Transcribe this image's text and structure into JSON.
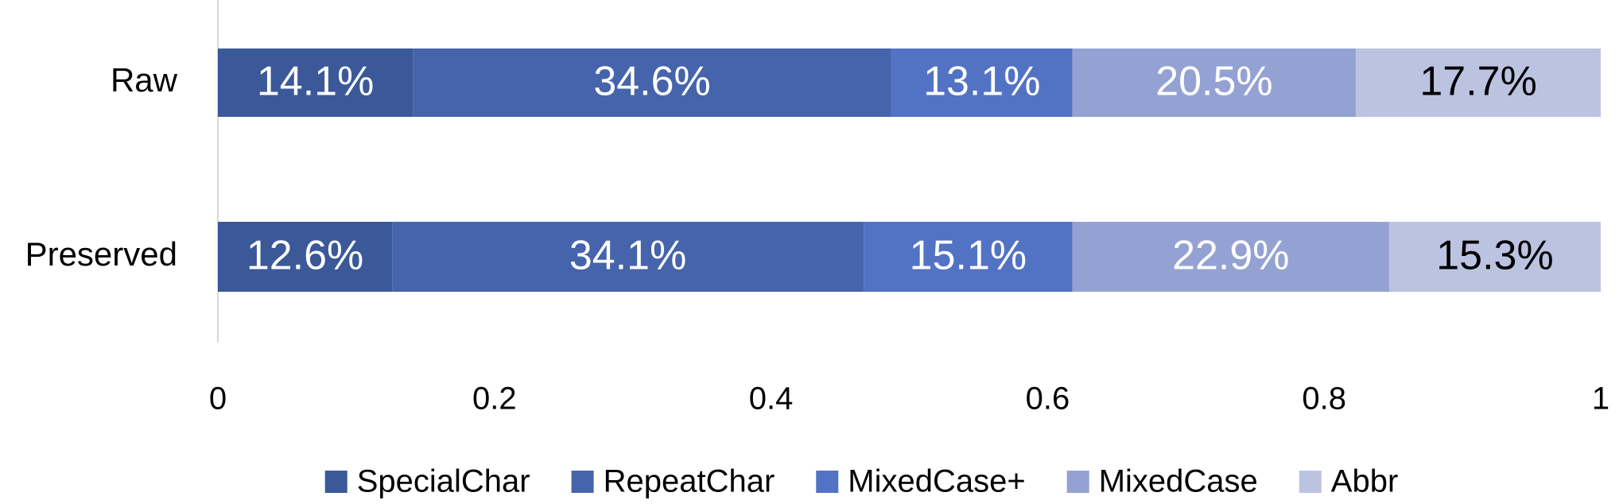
{
  "chart_data": {
    "type": "stacked_bar_horizontal",
    "categories": [
      "Raw",
      "Preserved"
    ],
    "series": [
      {
        "name": "SpecialChar",
        "color": "#3b5998",
        "values": [
          0.141,
          0.126
        ],
        "value_labels": [
          "14.1%",
          "12.6%"
        ]
      },
      {
        "name": "RepeatChar",
        "color": "#4564ab",
        "values": [
          0.346,
          0.341
        ],
        "value_labels": [
          "34.6%",
          "34.1%"
        ]
      },
      {
        "name": "MixedCase+",
        "color": "#5272c4",
        "values": [
          0.131,
          0.151
        ],
        "value_labels": [
          "13.1%",
          "15.1%"
        ]
      },
      {
        "name": "MixedCase",
        "color": "#94a2d3",
        "values": [
          0.205,
          0.229
        ],
        "value_labels": [
          "20.5%",
          "22.9%"
        ]
      },
      {
        "name": "Abbr",
        "color": "#bcc3e1",
        "values": [
          0.177,
          0.153
        ],
        "value_labels": [
          "17.7%",
          "15.3%"
        ]
      }
    ],
    "xlim": [
      0,
      1
    ],
    "xticks": [
      0,
      0.2,
      0.4,
      0.6,
      0.8,
      1
    ],
    "legend": "bottom"
  }
}
